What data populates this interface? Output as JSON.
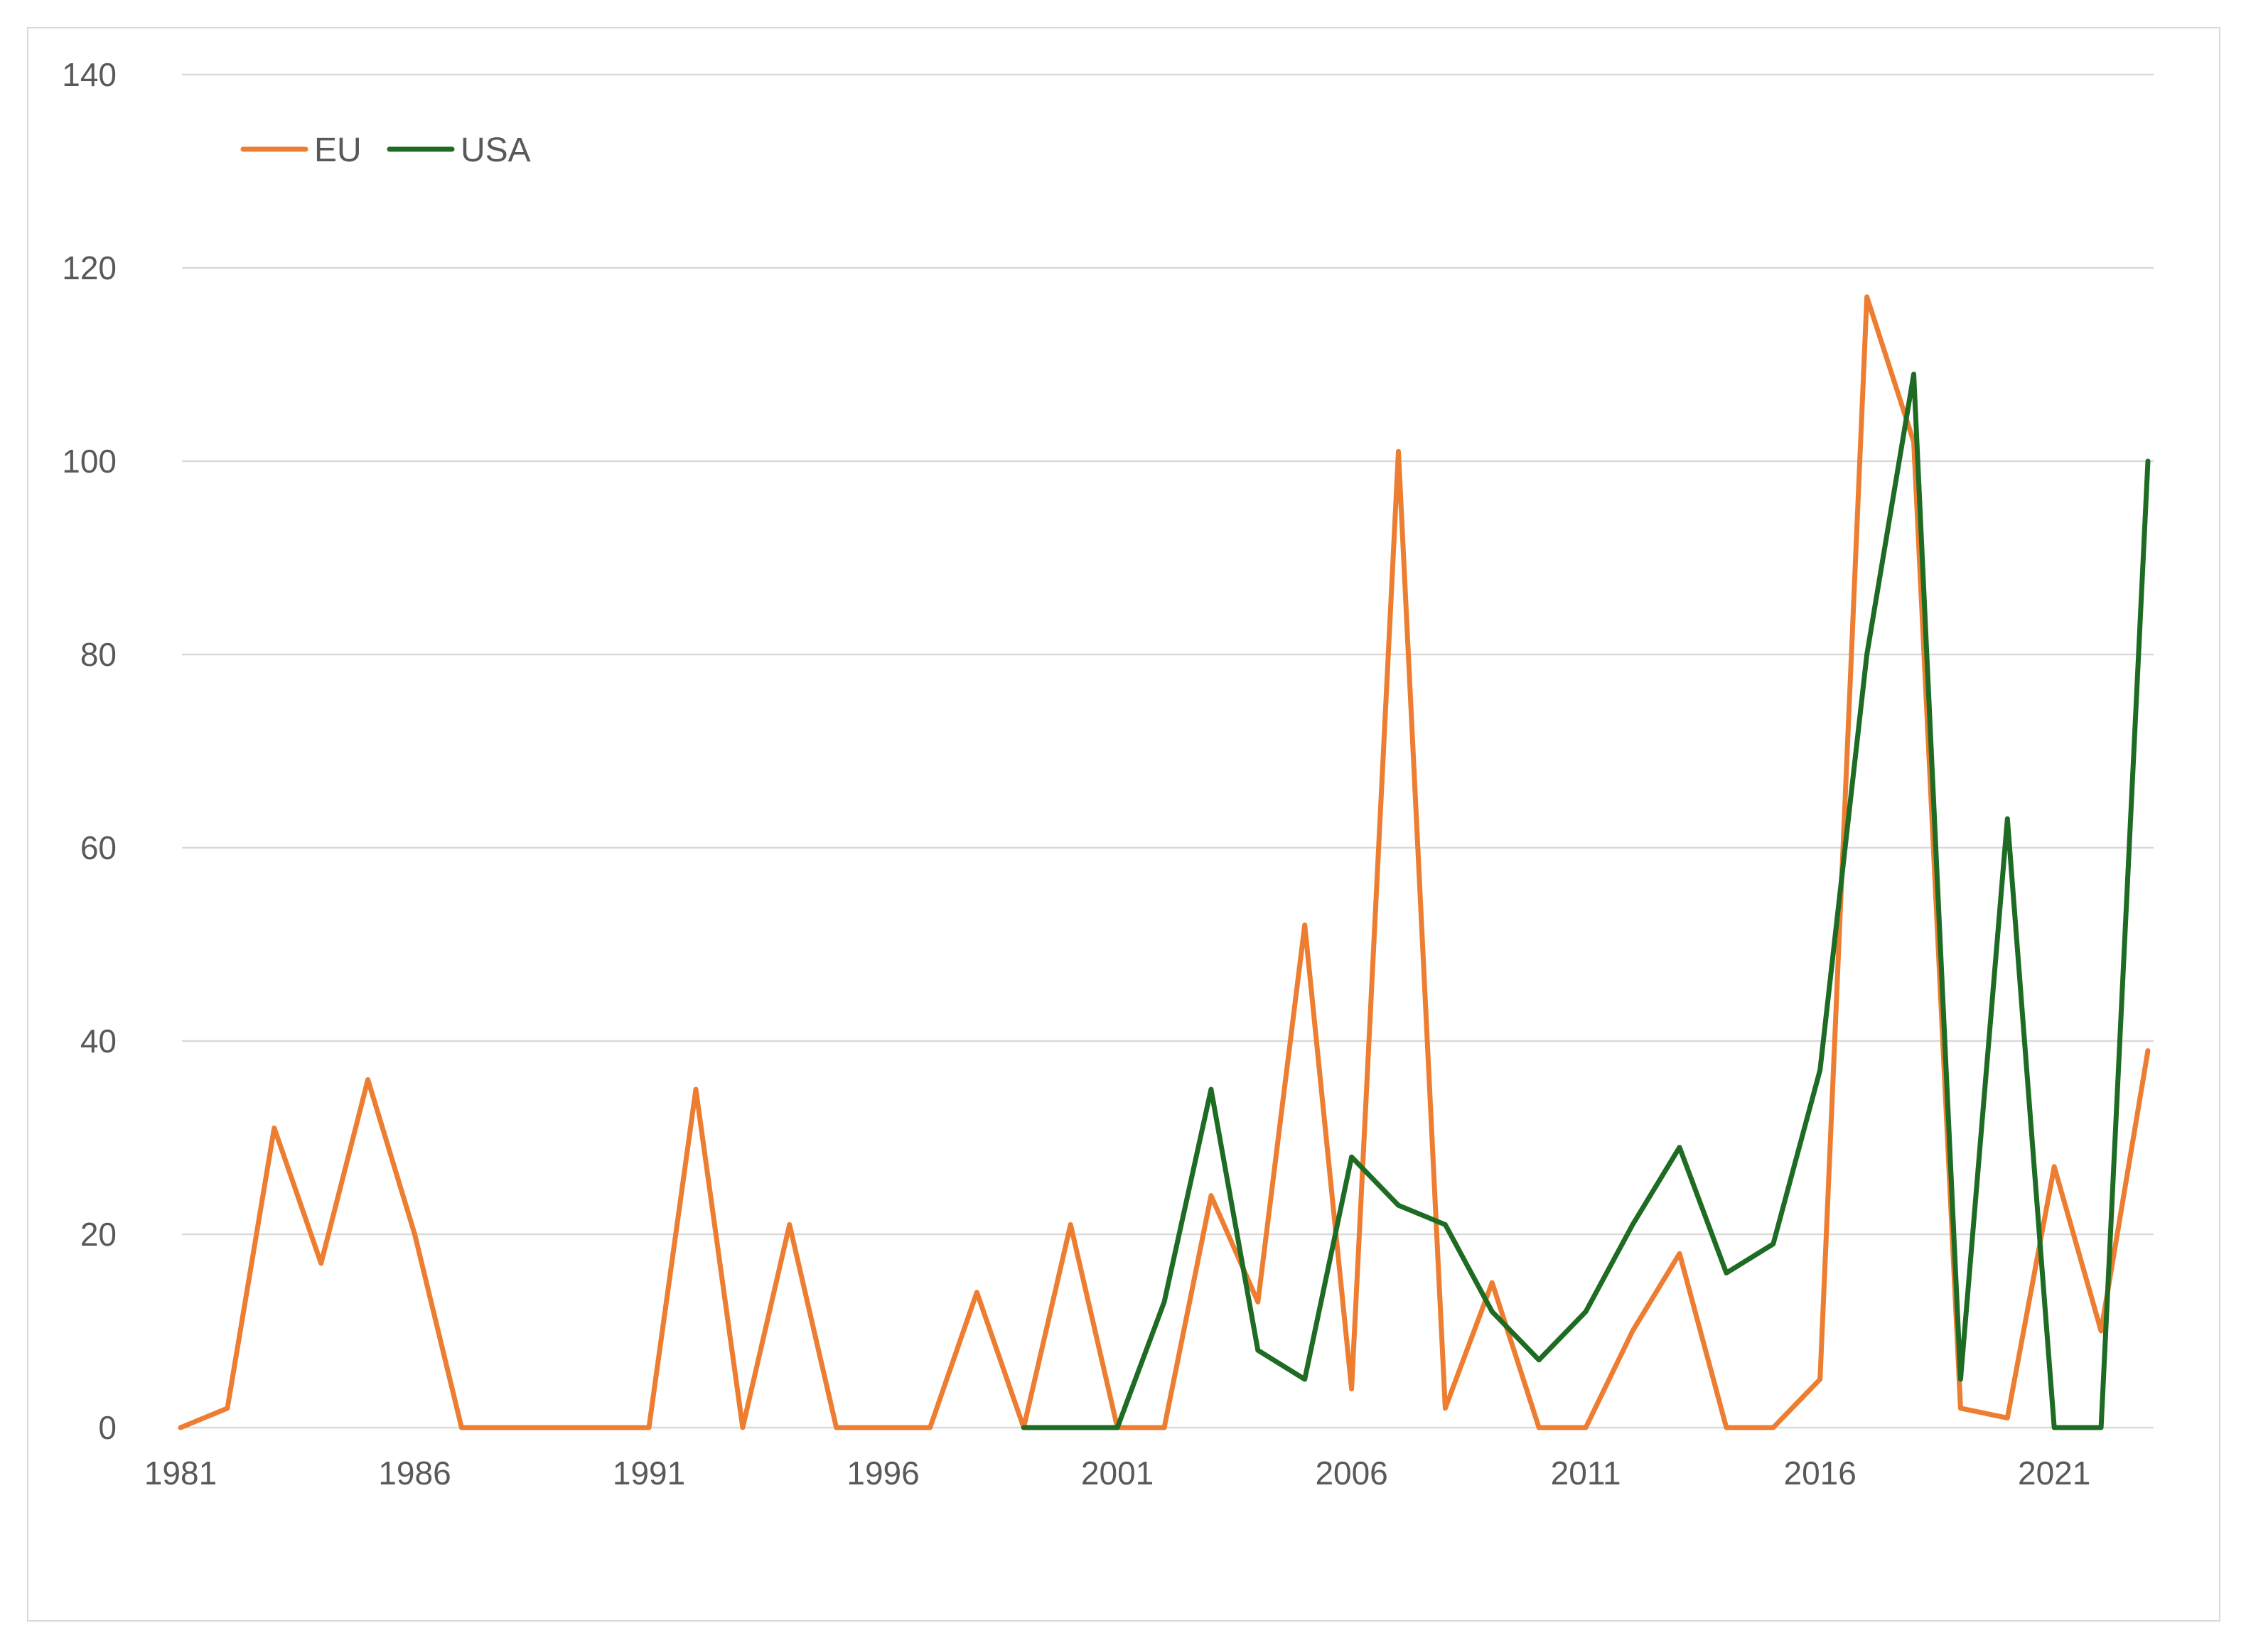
{
  "chart_data": {
    "type": "line",
    "title": "",
    "xlabel": "",
    "ylabel": "",
    "ylim": [
      0,
      140
    ],
    "yticks": [
      0,
      20,
      40,
      60,
      80,
      100,
      120,
      140
    ],
    "xlim": [
      1981,
      2023
    ],
    "xticks": [
      1981,
      1986,
      1991,
      1996,
      2001,
      2006,
      2011,
      2016,
      2021
    ],
    "grid": true,
    "legend_position": "top-left",
    "series": [
      {
        "name": "EU",
        "color": "#ED7D31",
        "points": [
          [
            1981,
            0
          ],
          [
            1982,
            2
          ],
          [
            1983,
            31
          ],
          [
            1984,
            17
          ],
          [
            1985,
            36
          ],
          [
            1986,
            20
          ],
          [
            1987,
            0
          ],
          [
            1988,
            0
          ],
          [
            1989,
            0
          ],
          [
            1990,
            0
          ],
          [
            1991,
            0
          ],
          [
            1992,
            35
          ],
          [
            1993,
            0
          ],
          [
            1994,
            21
          ],
          [
            1995,
            0
          ],
          [
            1996,
            0
          ],
          [
            1997,
            0
          ],
          [
            1998,
            14
          ],
          [
            1999,
            0
          ],
          [
            2000,
            21
          ],
          [
            2001,
            0
          ],
          [
            2002,
            0
          ],
          [
            2003,
            24
          ],
          [
            2004,
            13
          ],
          [
            2005,
            52
          ],
          [
            2006,
            4
          ],
          [
            2007,
            101
          ],
          [
            2008,
            2
          ],
          [
            2009,
            15
          ],
          [
            2010,
            0
          ],
          [
            2011,
            0
          ],
          [
            2012,
            10
          ],
          [
            2013,
            18
          ],
          [
            2014,
            0
          ],
          [
            2015,
            0
          ],
          [
            2016,
            5
          ],
          [
            2017,
            117
          ],
          [
            2018,
            102
          ],
          [
            2019,
            2
          ],
          [
            2020,
            1
          ],
          [
            2021,
            27
          ],
          [
            2022,
            10
          ],
          [
            2023,
            39
          ]
        ]
      },
      {
        "name": "USA",
        "color": "#1E6B23",
        "points": [
          [
            1999,
            0
          ],
          [
            2000,
            0
          ],
          [
            2001,
            0
          ],
          [
            2002,
            13
          ],
          [
            2003,
            35
          ],
          [
            2004,
            8
          ],
          [
            2005,
            5
          ],
          [
            2006,
            28
          ],
          [
            2007,
            23
          ],
          [
            2008,
            21
          ],
          [
            2009,
            12
          ],
          [
            2010,
            7
          ],
          [
            2011,
            12
          ],
          [
            2012,
            21
          ],
          [
            2013,
            29
          ],
          [
            2014,
            16
          ],
          [
            2015,
            19
          ],
          [
            2016,
            37
          ],
          [
            2017,
            80
          ],
          [
            2018,
            109
          ],
          [
            2019,
            5
          ],
          [
            2020,
            63
          ],
          [
            2021,
            0
          ],
          [
            2022,
            0
          ],
          [
            2023,
            100
          ]
        ]
      }
    ]
  }
}
